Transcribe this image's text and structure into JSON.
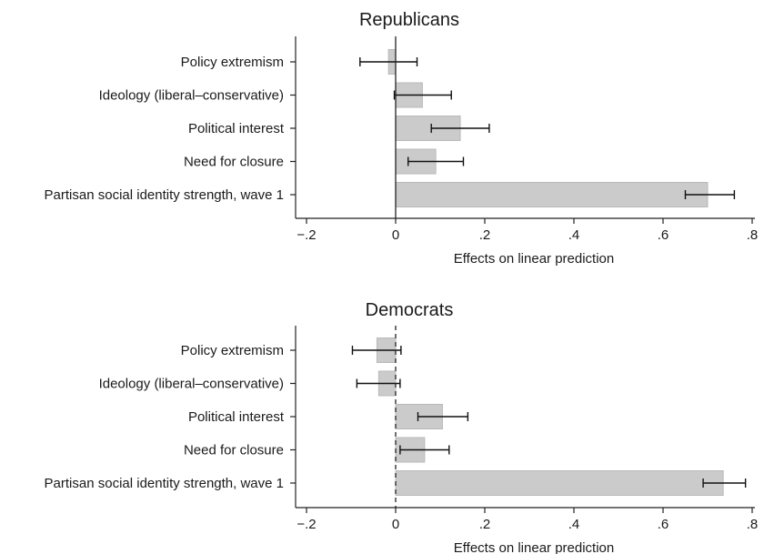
{
  "chart_data": [
    {
      "type": "bar",
      "orientation": "horizontal",
      "title": "Republicans",
      "xlabel": "Effects on linear prediction",
      "ylabel": "",
      "xlim": [
        -0.25,
        0.8
      ],
      "xticks": [
        -0.2,
        0,
        0.2,
        0.4,
        0.6,
        0.8
      ],
      "xtick_labels": [
        "−.2",
        "0",
        ".2",
        ".4",
        ".6",
        ".8"
      ],
      "zero_line": "solid",
      "categories": [
        "Policy extremism",
        "Ideology (liberal–conservative)",
        "Political interest",
        "Need for closure",
        "Partisan social identity strength, wave 1"
      ],
      "values": [
        -0.016,
        0.06,
        0.145,
        0.09,
        0.7
      ],
      "ci_low": [
        -0.08,
        -0.003,
        0.08,
        0.028,
        0.65
      ],
      "ci_high": [
        0.048,
        0.125,
        0.21,
        0.152,
        0.76
      ]
    },
    {
      "type": "bar",
      "orientation": "horizontal",
      "title": "Democrats",
      "xlabel": "Effects on linear prediction",
      "ylabel": "",
      "xlim": [
        -0.25,
        0.8
      ],
      "xticks": [
        -0.2,
        0,
        0.2,
        0.4,
        0.6,
        0.8
      ],
      "xtick_labels": [
        "−.2",
        "0",
        ".2",
        ".4",
        ".6",
        ".8"
      ],
      "zero_line": "dashed",
      "categories": [
        "Policy extremism",
        "Ideology (liberal–conservative)",
        "Political interest",
        "Need for closure",
        "Partisan social identity strength, wave 1"
      ],
      "values": [
        -0.042,
        -0.038,
        0.105,
        0.065,
        0.735
      ],
      "ci_low": [
        -0.097,
        -0.087,
        0.05,
        0.01,
        0.69
      ],
      "ci_high": [
        0.012,
        0.01,
        0.162,
        0.12,
        0.785
      ]
    }
  ]
}
